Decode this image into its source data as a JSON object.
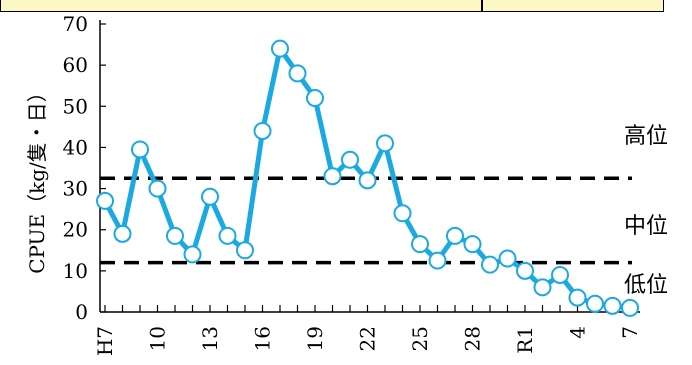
{
  "chart_data": {
    "type": "line",
    "ylabel": "CPUE（kg/隻・日）",
    "ylim": [
      0,
      70
    ],
    "yticks": [
      0,
      10,
      20,
      30,
      40,
      50,
      60,
      70
    ],
    "xtick_labels": [
      "H7",
      "10",
      "13",
      "16",
      "19",
      "22",
      "25",
      "28",
      "R1",
      "4",
      "7"
    ],
    "series": [
      {
        "color": "#1aa9e0",
        "values": [
          27,
          19,
          39.5,
          30,
          18.5,
          14,
          28,
          18.5,
          15,
          44,
          64,
          58,
          52,
          33,
          37,
          32,
          41,
          24,
          16.5,
          12.5,
          18.5,
          16.5,
          11.5,
          13,
          10,
          6,
          9,
          3.5,
          2,
          1.5,
          1
        ]
      }
    ],
    "reference_lines": [
      {
        "value": 32.5,
        "style": "dashed"
      },
      {
        "value": 12,
        "style": "dashed"
      }
    ],
    "band_labels": [
      "高位",
      "中位",
      "低位"
    ]
  }
}
